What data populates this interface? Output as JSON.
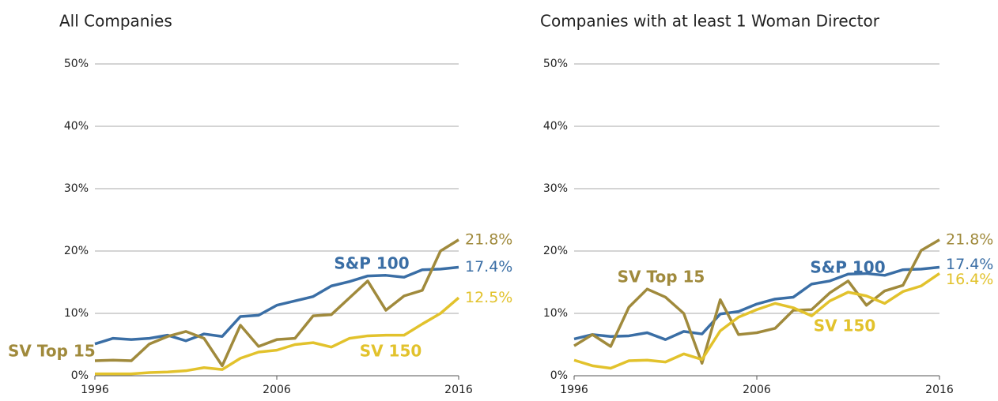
{
  "chart_data": [
    {
      "type": "line",
      "title": "All Companies",
      "x": [
        1996,
        1997,
        1998,
        1999,
        2000,
        2001,
        2002,
        2003,
        2004,
        2005,
        2006,
        2007,
        2008,
        2009,
        2010,
        2011,
        2012,
        2013,
        2014,
        2015,
        2016
      ],
      "xlim": [
        1996,
        2016
      ],
      "xticks": [
        1996,
        2006,
        2016
      ],
      "ylim": [
        0,
        50
      ],
      "yticks": [
        {
          "value": 0,
          "label": "0%"
        },
        {
          "value": 10,
          "label": "10%"
        },
        {
          "value": 20,
          "label": "20%"
        },
        {
          "value": 30,
          "label": "30%"
        },
        {
          "value": 40,
          "label": "40%"
        },
        {
          "value": 50,
          "label": "50%"
        }
      ],
      "grid": true,
      "series": [
        {
          "name": "S&P 100",
          "color": "#3a6ea5",
          "values": [
            5.1,
            6.0,
            5.8,
            6.0,
            6.5,
            5.6,
            6.7,
            6.3,
            9.5,
            9.7,
            11.3,
            12.0,
            12.7,
            14.4,
            15.1,
            16.0,
            16.1,
            15.8,
            17.0,
            17.1,
            17.4
          ],
          "end_label": "17.4%"
        },
        {
          "name": "SV Top 15",
          "color": "#a08a3c",
          "values": [
            2.4,
            2.5,
            2.4,
            5.1,
            6.3,
            7.1,
            6.0,
            1.6,
            8.1,
            4.7,
            5.8,
            6.0,
            9.6,
            9.8,
            12.5,
            15.2,
            10.5,
            12.8,
            13.7,
            20.0,
            21.8
          ],
          "end_label": "21.8%"
        },
        {
          "name": "SV 150",
          "color": "#e2c22c",
          "values": [
            0.3,
            0.3,
            0.3,
            0.5,
            0.6,
            0.8,
            1.3,
            1.0,
            2.8,
            3.8,
            4.1,
            5.0,
            5.3,
            4.6,
            6.0,
            6.4,
            6.5,
            6.5,
            8.3,
            10.0,
            12.5
          ],
          "end_label": "12.5%"
        }
      ]
    },
    {
      "type": "line",
      "title": "Companies with at least 1 Woman Director",
      "x": [
        1996,
        1997,
        1998,
        1999,
        2000,
        2001,
        2002,
        2003,
        2004,
        2005,
        2006,
        2007,
        2008,
        2009,
        2010,
        2011,
        2012,
        2013,
        2014,
        2015,
        2016
      ],
      "xlim": [
        1996,
        2016
      ],
      "xticks": [
        1996,
        2006,
        2016
      ],
      "ylim": [
        0,
        50
      ],
      "yticks": [
        {
          "value": 0,
          "label": "0%"
        },
        {
          "value": 10,
          "label": "10%"
        },
        {
          "value": 20,
          "label": "20%"
        },
        {
          "value": 30,
          "label": "30%"
        },
        {
          "value": 40,
          "label": "40%"
        },
        {
          "value": 50,
          "label": "50%"
        }
      ],
      "grid": true,
      "series": [
        {
          "name": "S&P 100",
          "color": "#3a6ea5",
          "values": [
            5.9,
            6.6,
            6.3,
            6.4,
            6.9,
            5.8,
            7.1,
            6.7,
            9.9,
            10.3,
            11.5,
            12.3,
            12.6,
            14.7,
            15.2,
            16.3,
            16.4,
            16.1,
            17.0,
            17.1,
            17.4
          ],
          "end_label": "17.4%"
        },
        {
          "name": "SV Top 15",
          "color": "#a08a3c",
          "values": [
            4.8,
            6.6,
            4.7,
            11.0,
            13.9,
            12.6,
            10.0,
            2.0,
            12.2,
            6.6,
            6.9,
            7.6,
            10.5,
            10.6,
            13.3,
            15.2,
            11.3,
            13.6,
            14.5,
            20.1,
            21.8
          ],
          "end_label": "21.8%"
        },
        {
          "name": "SV 150",
          "color": "#e2c22c",
          "values": [
            2.5,
            1.6,
            1.2,
            2.4,
            2.5,
            2.2,
            3.5,
            2.6,
            7.2,
            9.4,
            10.6,
            11.6,
            10.9,
            9.6,
            12.0,
            13.4,
            12.8,
            11.6,
            13.5,
            14.4,
            16.4
          ],
          "end_label": "16.4%"
        }
      ]
    }
  ]
}
